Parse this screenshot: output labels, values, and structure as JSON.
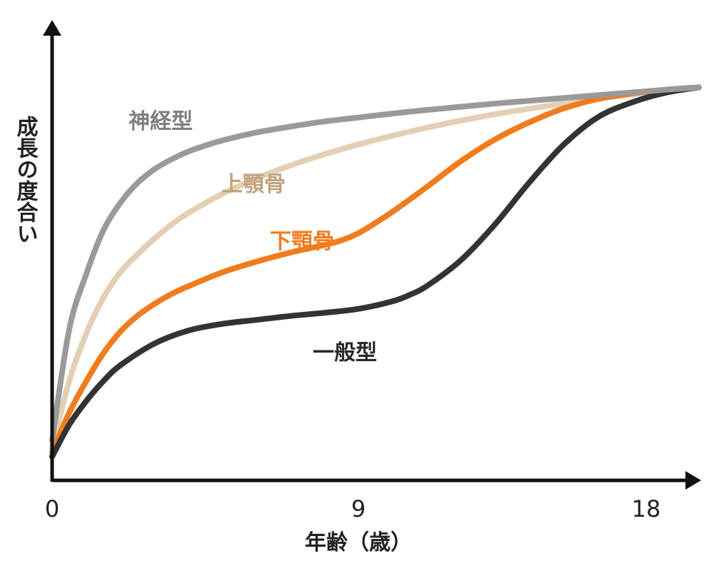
{
  "chart_data": {
    "type": "line",
    "xlabel": "年齢（歳）",
    "ylabel": "成長の度合い",
    "xlim": [
      0,
      19.1
    ],
    "ylim": [
      0,
      100
    ],
    "x_ticks": [
      "0",
      "9",
      "18"
    ],
    "grid": false,
    "legend": "inline labels",
    "series": [
      {
        "name": "神経型",
        "color": "#9a9a9a",
        "x": [
          0,
          0.5,
          1,
          1.5,
          2,
          2.5,
          3,
          3.5,
          4,
          4.5,
          5,
          6,
          7,
          8,
          9,
          10,
          11,
          12,
          13,
          14,
          15,
          16,
          17,
          18,
          19
        ],
        "y": [
          10,
          38,
          52,
          63,
          70,
          75,
          78.5,
          81,
          83,
          84.5,
          85.8,
          87.8,
          89.3,
          90.6,
          91.6,
          92.6,
          93.5,
          94.3,
          95.1,
          95.8,
          96.5,
          97.2,
          97.9,
          98.6,
          99.2
        ]
      },
      {
        "name": "上顎骨",
        "color": "#e3cfb4",
        "x": [
          0,
          0.5,
          1,
          1.5,
          2,
          2.5,
          3,
          3.5,
          4,
          5,
          6,
          7,
          8,
          9,
          10,
          11,
          12,
          13,
          14,
          15,
          16,
          17,
          18,
          19
        ],
        "y": [
          8,
          25,
          37,
          46,
          52.5,
          57,
          61,
          64.5,
          67.5,
          72.3,
          76.2,
          79.5,
          82.3,
          84.8,
          87,
          89,
          90.8,
          92.4,
          93.8,
          95.1,
          96.3,
          97.4,
          98.4,
          99.2
        ]
      },
      {
        "name": "下顎骨",
        "color": "#f07c1e",
        "x": [
          0,
          0.5,
          1,
          1.5,
          2,
          2.5,
          3,
          3.5,
          4,
          5,
          6,
          7,
          8,
          8.5,
          9,
          9.5,
          10,
          11,
          12,
          13,
          14,
          15,
          16,
          17,
          18,
          19
        ],
        "y": [
          7,
          17,
          25,
          32,
          37.5,
          41.5,
          44.5,
          47,
          49,
          52.5,
          55.2,
          57.5,
          59.4,
          60.6,
          62.4,
          65,
          67.8,
          74,
          80.5,
          86,
          90.3,
          93.8,
          96.2,
          97.6,
          98.6,
          99.2
        ]
      },
      {
        "name": "一般型",
        "color": "#333333",
        "x": [
          0,
          0.5,
          1,
          1.5,
          2,
          3,
          4,
          5,
          6,
          7,
          8,
          9,
          10,
          10.5,
          11,
          12,
          13,
          14,
          15,
          16,
          17,
          18,
          19
        ],
        "y": [
          6,
          14,
          20,
          25,
          29,
          34.5,
          37.8,
          39.5,
          40.5,
          41.5,
          42.3,
          43.3,
          45.2,
          46.8,
          49,
          55.5,
          64.5,
          75,
          84.5,
          91.5,
          95.3,
          97.8,
          99.2
        ]
      }
    ]
  }
}
